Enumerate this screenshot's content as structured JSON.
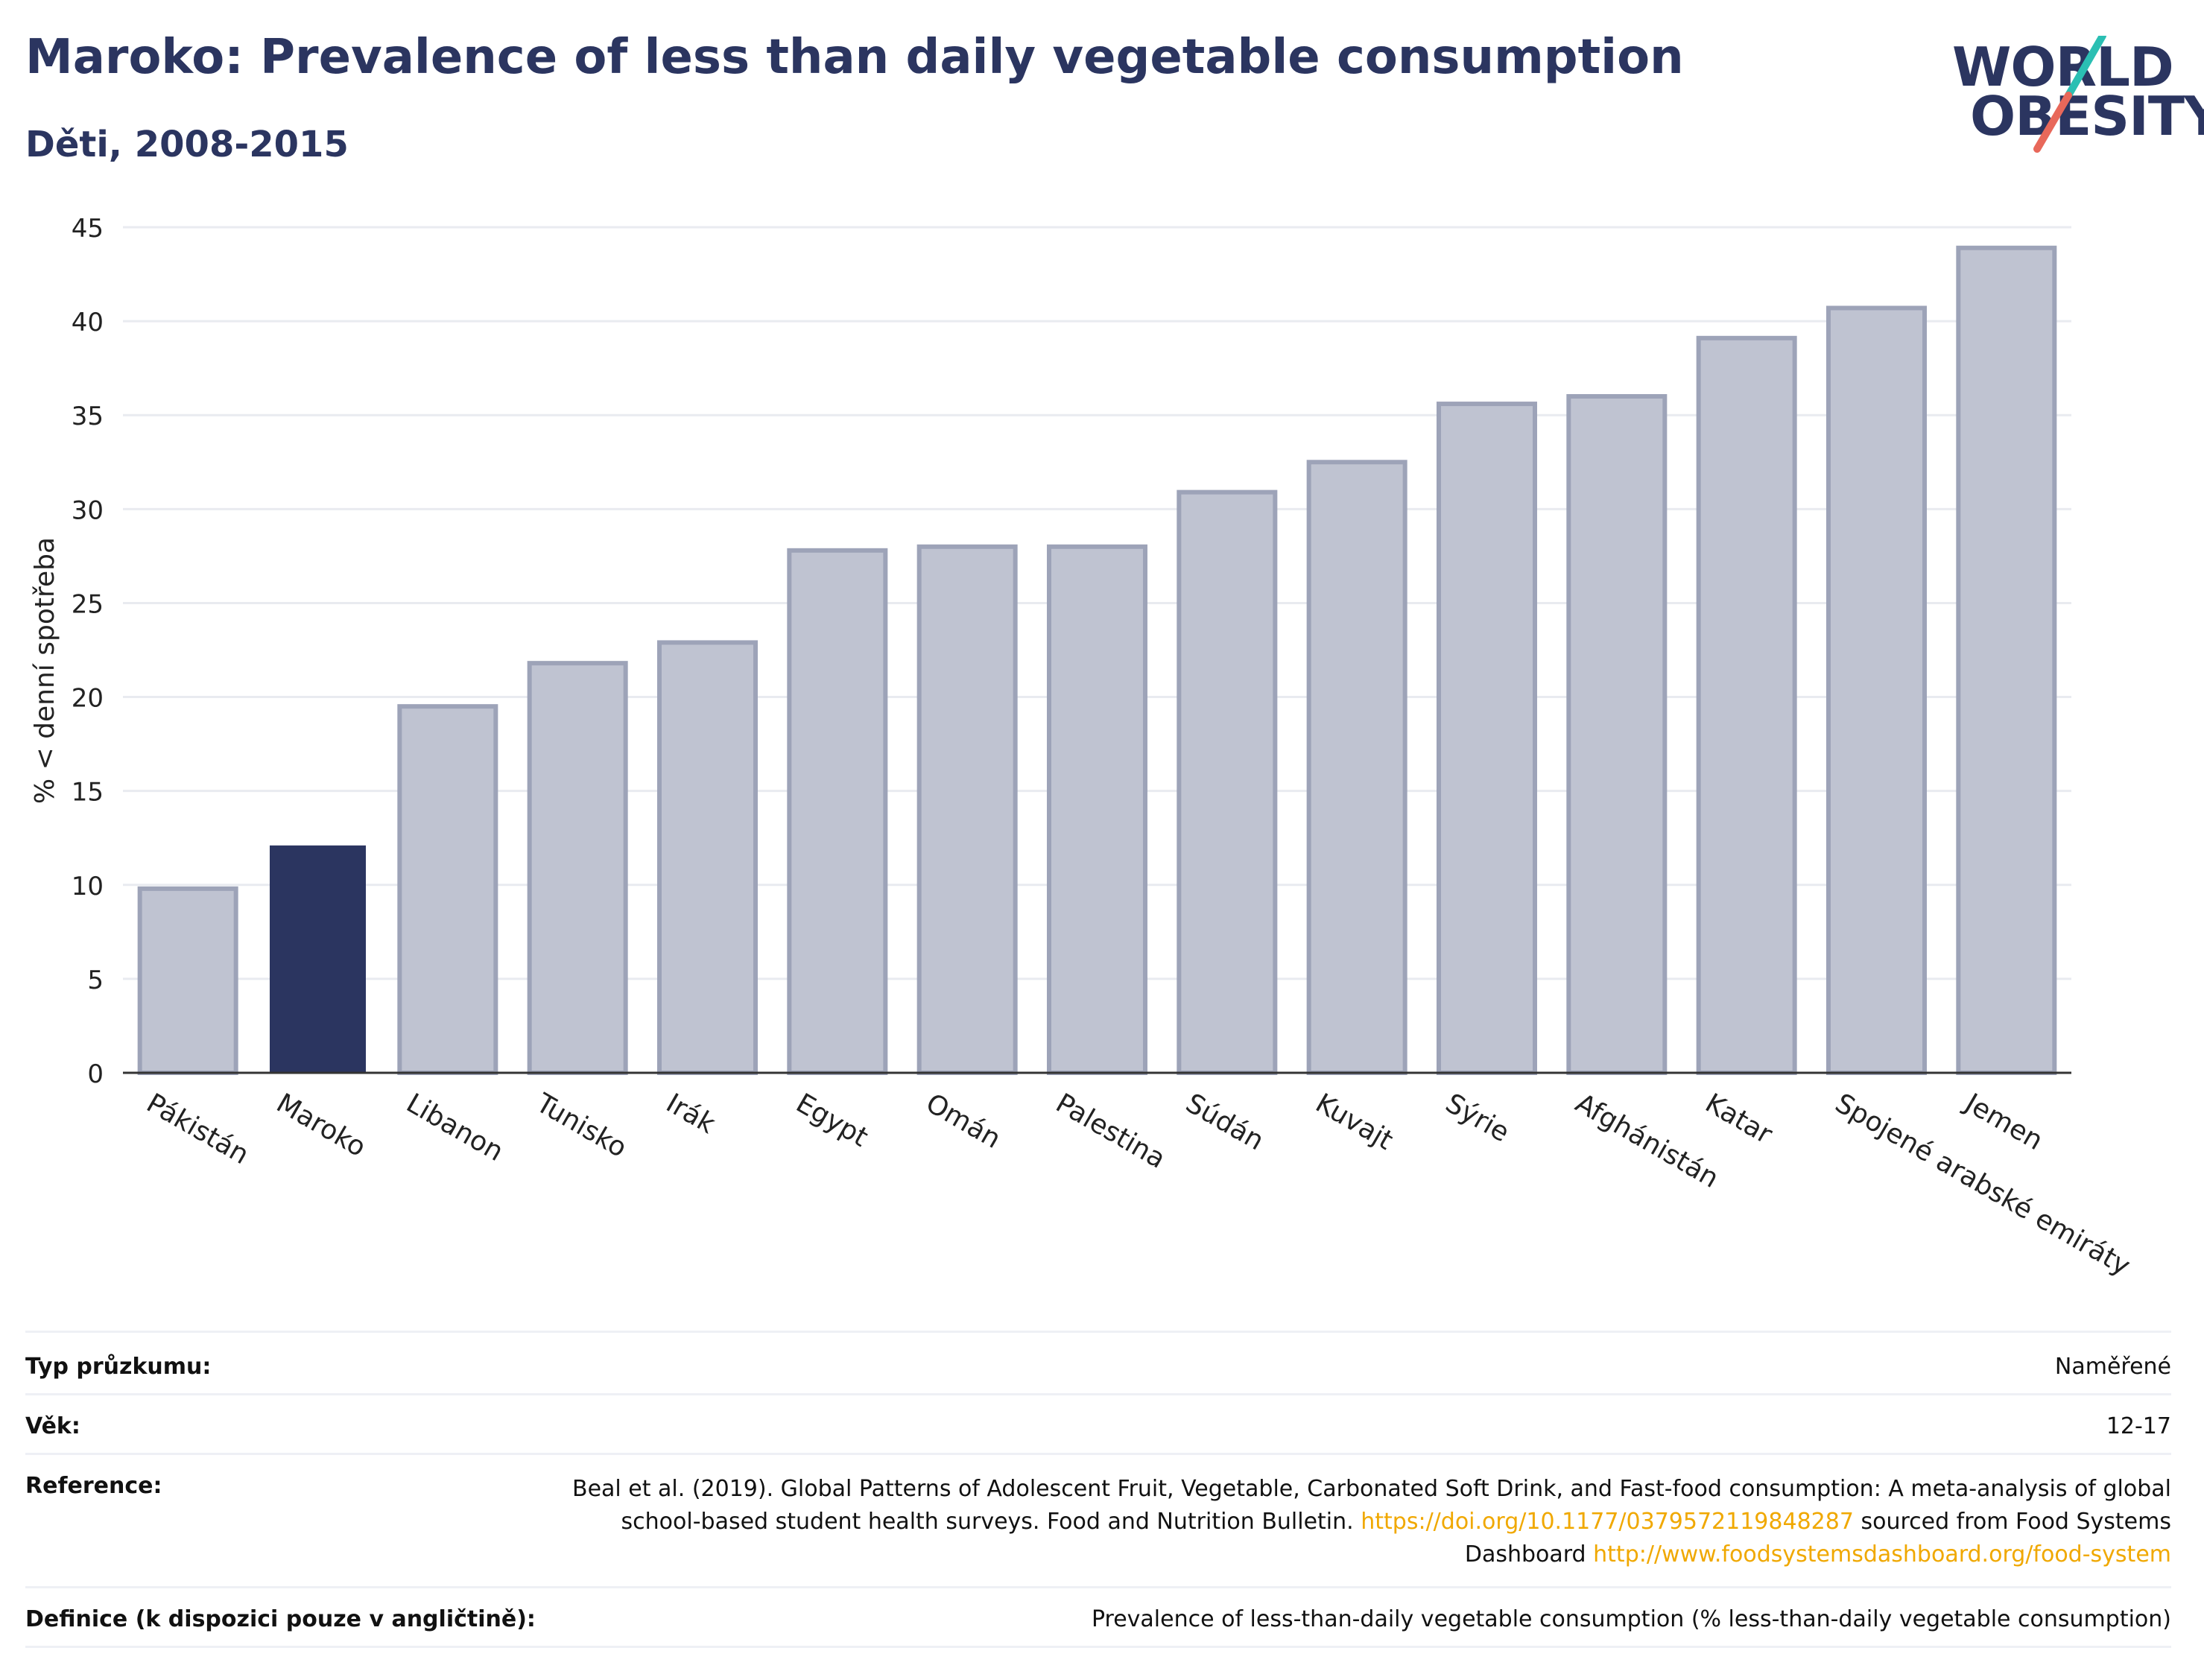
{
  "header": {
    "title": "Maroko: Prevalence of less than daily vegetable consumption",
    "subtitle": "Děti, 2008-2015"
  },
  "logo": {
    "text_line1": "WORLD",
    "text_line2": "OBESITY",
    "accent_teal": "#2bbfb3",
    "accent_coral": "#e8685a"
  },
  "colors": {
    "bar_default": "#bfc3d1",
    "bar_border": "#9da3b8",
    "bar_highlight": "#2b3560",
    "grid": "#e9ebf0"
  },
  "chart_data": {
    "type": "bar",
    "title": "Maroko: Prevalence of less than daily vegetable consumption",
    "subtitle": "Děti, 2008-2015",
    "xlabel": "",
    "ylabel": "% < denní spotřeba",
    "ylim": [
      0,
      45
    ],
    "yticks": [
      0,
      5,
      10,
      15,
      20,
      25,
      30,
      35,
      40,
      45
    ],
    "grid": true,
    "highlight": "Maroko",
    "categories": [
      "Pákistán",
      "Maroko",
      "Libanon",
      "Tunisko",
      "Irák",
      "Egypt",
      "Omán",
      "Palestina",
      "Súdán",
      "Kuvajt",
      "Sýrie",
      "Afghánistán",
      "Katar",
      "Spojené arabské emiráty",
      "Jemen"
    ],
    "values": [
      9.8,
      12.1,
      19.5,
      21.8,
      22.9,
      27.8,
      28.0,
      28.0,
      30.9,
      32.5,
      35.6,
      36.0,
      39.1,
      40.7,
      43.9
    ]
  },
  "info": {
    "survey_type_label": "Typ průzkumu:",
    "survey_type_value": "Naměřené",
    "age_label": "Věk:",
    "age_value": "12-17",
    "reference_label": "Reference:",
    "reference_text1": "Beal et al. (2019). Global Patterns of Adolescent Fruit, Vegetable, Carbonated Soft Drink, and Fast-food consumption: A meta-analysis of global school-based student health surveys. Food and Nutrition Bulletin.",
    "reference_link1": "https://doi.org/10.1177/0379572119848287",
    "reference_text2": "sourced from Food Systems Dashboard",
    "reference_link2": "http://www.foodsystemsdashboard.org/food-system",
    "definition_label": "Definice (k dispozici pouze v angličtině):",
    "definition_value": "Prevalence of less-than-daily vegetable consumption (% less-than-daily vegetable consumption)"
  }
}
